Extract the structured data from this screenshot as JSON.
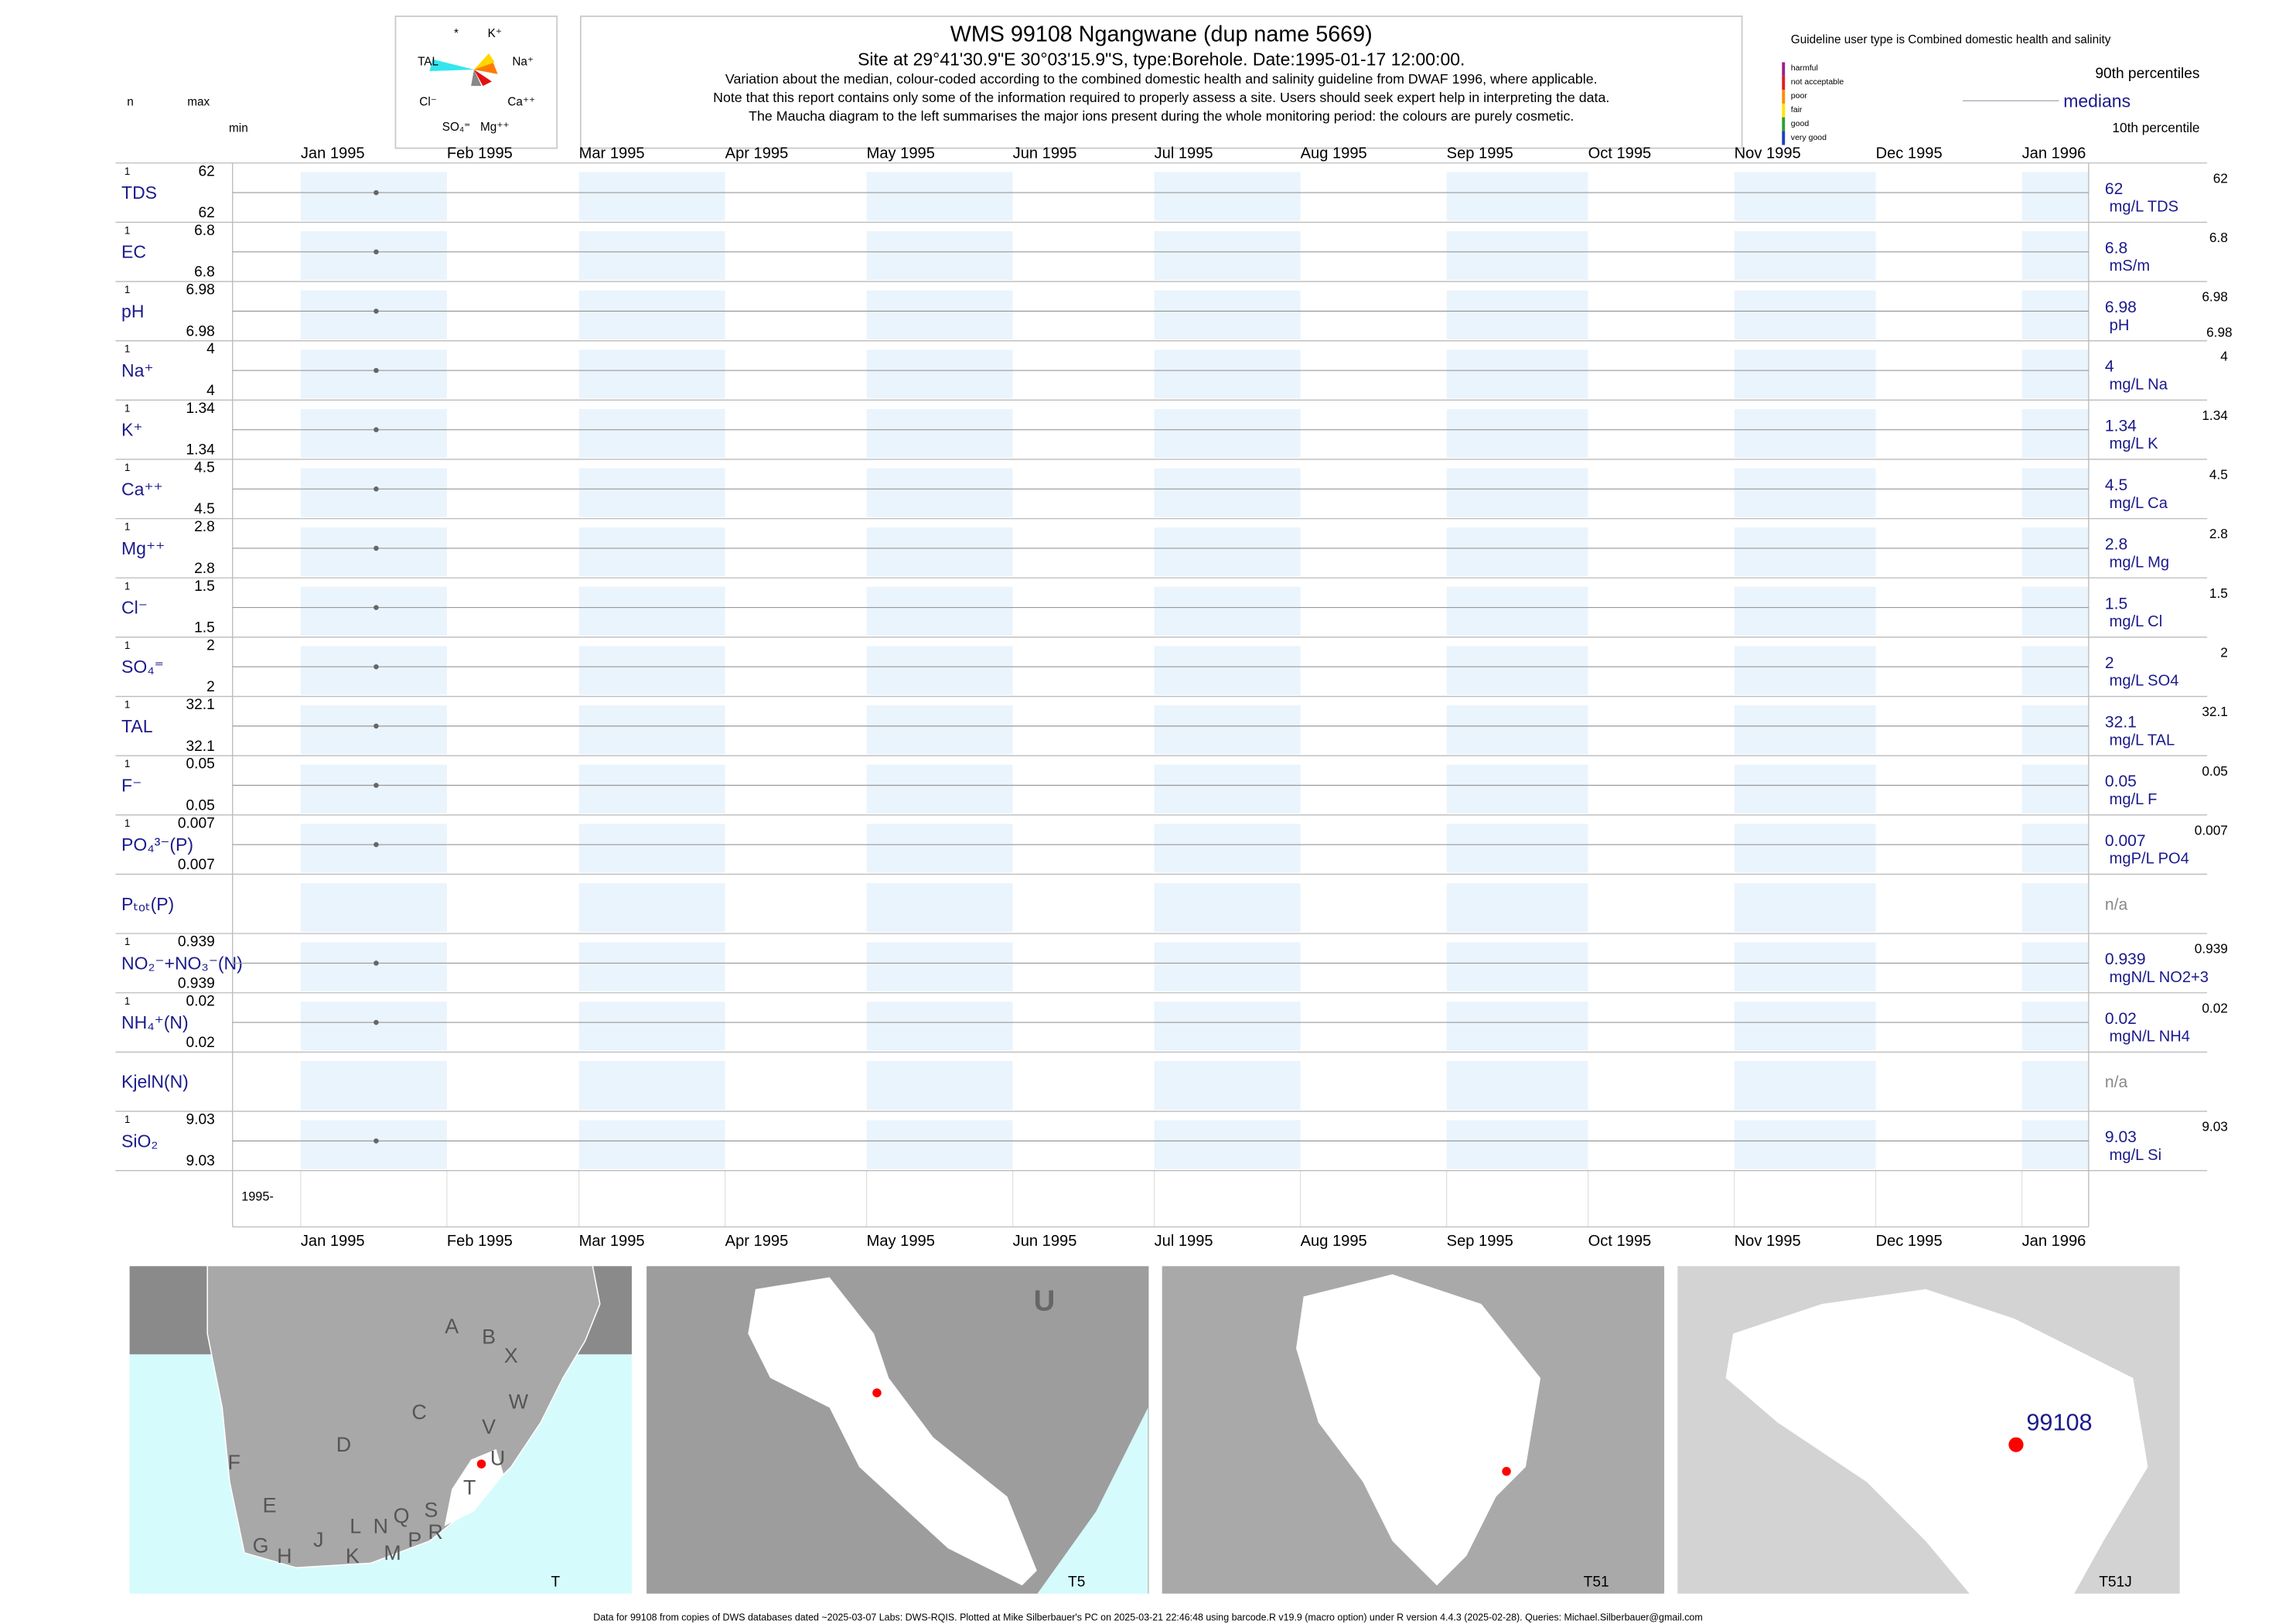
{
  "header": {
    "title": "WMS 99108  Ngangwane (dup name 5669)",
    "site": "Site at 29°41'30.9\"E 30°03'15.9\"S, type:Borehole. Date:1995-01-17 12:00:00.",
    "notes": [
      "Variation about the median,  colour-coded according to the combined domestic health and salinity guideline from DWAF 1996, where applicable.",
      "Note that this report contains only some of the information required to properly assess a site. Users should seek expert help in interpreting the data.",
      "The Maucha diagram to the left summarises the major ions present during the whole monitoring period: the colours are purely cosmetic."
    ]
  },
  "maucha": {
    "labels": [
      "*",
      "K⁺",
      "TAL",
      "Na⁺",
      "Cl⁻",
      "Ca⁺⁺",
      "SO₄⁼",
      "Mg⁺⁺"
    ]
  },
  "legend": {
    "guideline": "Guideline user type is Combined domestic health and salinity",
    "classes": [
      {
        "name": "harmful",
        "color": "#9b1f8c"
      },
      {
        "name": "not acceptable",
        "color": "#e41a1c"
      },
      {
        "name": "poor",
        "color": "#ff8c00"
      },
      {
        "name": "fair",
        "color": "#ffe600"
      },
      {
        "name": "good",
        "color": "#2ca02c"
      },
      {
        "name": "very good",
        "color": "#1f3fbf"
      }
    ],
    "p90": "90th percentiles",
    "medians": "medians",
    "p10": "10th percentile"
  },
  "row_header": {
    "n": "n",
    "max": "max",
    "min": "min"
  },
  "chart_data": {
    "type": "scatter",
    "x": [
      "1995-01-17"
    ],
    "date_label": "1995-",
    "xticks": [
      {
        "value": "1995-01",
        "label": "Jan 1995"
      },
      {
        "value": "1995-02",
        "label": "Feb 1995"
      },
      {
        "value": "1995-03",
        "label": "Mar 1995"
      },
      {
        "value": "1995-04",
        "label": "Apr 1995"
      },
      {
        "value": "1995-05",
        "label": "May 1995"
      },
      {
        "value": "1995-06",
        "label": "Jun 1995"
      },
      {
        "value": "1995-07",
        "label": "Jul 1995"
      },
      {
        "value": "1995-08",
        "label": "Aug 1995"
      },
      {
        "value": "1995-09",
        "label": "Sep 1995"
      },
      {
        "value": "1995-10",
        "label": "Oct 1995"
      },
      {
        "value": "1995-11",
        "label": "Nov 1995"
      },
      {
        "value": "1995-12",
        "label": "Dec 1995"
      },
      {
        "value": "1996-01",
        "label": "Jan 1996"
      }
    ],
    "panels": [
      {
        "label": "TDS",
        "n": 1,
        "max": 62,
        "min": 62,
        "values": [
          62
        ],
        "median": 62,
        "p90": 62,
        "unit": "mg/L TDS"
      },
      {
        "label": "EC",
        "n": 1,
        "max": 6.8,
        "min": 6.8,
        "values": [
          6.8
        ],
        "median": 6.8,
        "p90": 6.8,
        "unit": "mS/m"
      },
      {
        "label": "pH",
        "n": 1,
        "max": 6.98,
        "min": 6.98,
        "values": [
          6.98
        ],
        "median": 6.98,
        "p90": 6.98,
        "p10": 6.98,
        "unit": "pH"
      },
      {
        "label": "Na⁺",
        "n": 1,
        "max": 4,
        "min": 4,
        "values": [
          4
        ],
        "median": 4,
        "p90": 4,
        "unit": "mg/L Na"
      },
      {
        "label": "K⁺",
        "n": 1,
        "max": 1.34,
        "min": 1.34,
        "values": [
          1.34
        ],
        "median": 1.34,
        "p90": 1.34,
        "unit": "mg/L K"
      },
      {
        "label": "Ca⁺⁺",
        "n": 1,
        "max": 4.5,
        "min": 4.5,
        "values": [
          4.5
        ],
        "median": 4.5,
        "p90": 4.5,
        "unit": "mg/L Ca"
      },
      {
        "label": "Mg⁺⁺",
        "n": 1,
        "max": 2.8,
        "min": 2.8,
        "values": [
          2.8
        ],
        "median": 2.8,
        "p90": 2.8,
        "unit": "mg/L Mg"
      },
      {
        "label": "Cl⁻",
        "n": 1,
        "max": 1.5,
        "min": 1.5,
        "values": [
          1.5
        ],
        "median": 1.5,
        "p90": 1.5,
        "unit": "mg/L Cl"
      },
      {
        "label": "SO₄⁼",
        "n": 1,
        "max": 2,
        "min": 2,
        "values": [
          2
        ],
        "median": 2,
        "p90": 2,
        "unit": "mg/L SO4"
      },
      {
        "label": "TAL",
        "n": 1,
        "max": 32.1,
        "min": 32.1,
        "values": [
          32.1
        ],
        "median": 32.1,
        "p90": 32.1,
        "unit": "mg/L TAL"
      },
      {
        "label": "F⁻",
        "n": 1,
        "max": 0.05,
        "min": 0.05,
        "values": [
          0.05
        ],
        "median": 0.05,
        "p90": 0.05,
        "unit": "mg/L F"
      },
      {
        "label": "PO₄³⁻(P)",
        "n": 1,
        "max": 0.007,
        "min": 0.007,
        "values": [
          0.007
        ],
        "median": 0.007,
        "p90": 0.007,
        "unit": "mgP/L PO4"
      },
      {
        "label": "Pₜₒₜ(P)",
        "status": "n/a"
      },
      {
        "label": "NO₂⁻+NO₃⁻(N)",
        "n": 1,
        "max": 0.939,
        "min": 0.939,
        "values": [
          0.939
        ],
        "median": 0.939,
        "p90": 0.939,
        "unit": "mgN/L NO2+3"
      },
      {
        "label": "NH₄⁺(N)",
        "n": 1,
        "max": 0.02,
        "min": 0.02,
        "values": [
          0.02
        ],
        "median": 0.02,
        "p90": 0.02,
        "unit": "mgN/L NH4"
      },
      {
        "label": "KjelN(N)",
        "status": "n/a"
      },
      {
        "label": "SiO₂",
        "n": 1,
        "max": 9.03,
        "min": 9.03,
        "values": [
          9.03
        ],
        "median": 9.03,
        "p90": 9.03,
        "unit": "mg/L Si"
      }
    ]
  },
  "maps": [
    {
      "label": "T",
      "letters": [
        "A",
        "B",
        "X",
        "W",
        "C",
        "D",
        "V",
        "U",
        "F",
        "E",
        "T",
        "G",
        "H",
        "J",
        "K",
        "L",
        "N",
        "M",
        "Q",
        "P",
        "S",
        "R"
      ]
    },
    {
      "label": "T5",
      "letters": [
        "U"
      ]
    },
    {
      "label": "T51"
    },
    {
      "label": "T51J",
      "site": "99108"
    }
  ],
  "footer": "Data for 99108 from copies of DWS databases dated ~2025-03-07 Labs: DWS-RQIS. Plotted at Mike Silberbauer's PC on 2025-03-21 22:46:48 using barcode.R v19.9 (macro option) under R version 4.4.3 (2025-02-28). Queries: Michael.Silberbauer@gmail.com"
}
